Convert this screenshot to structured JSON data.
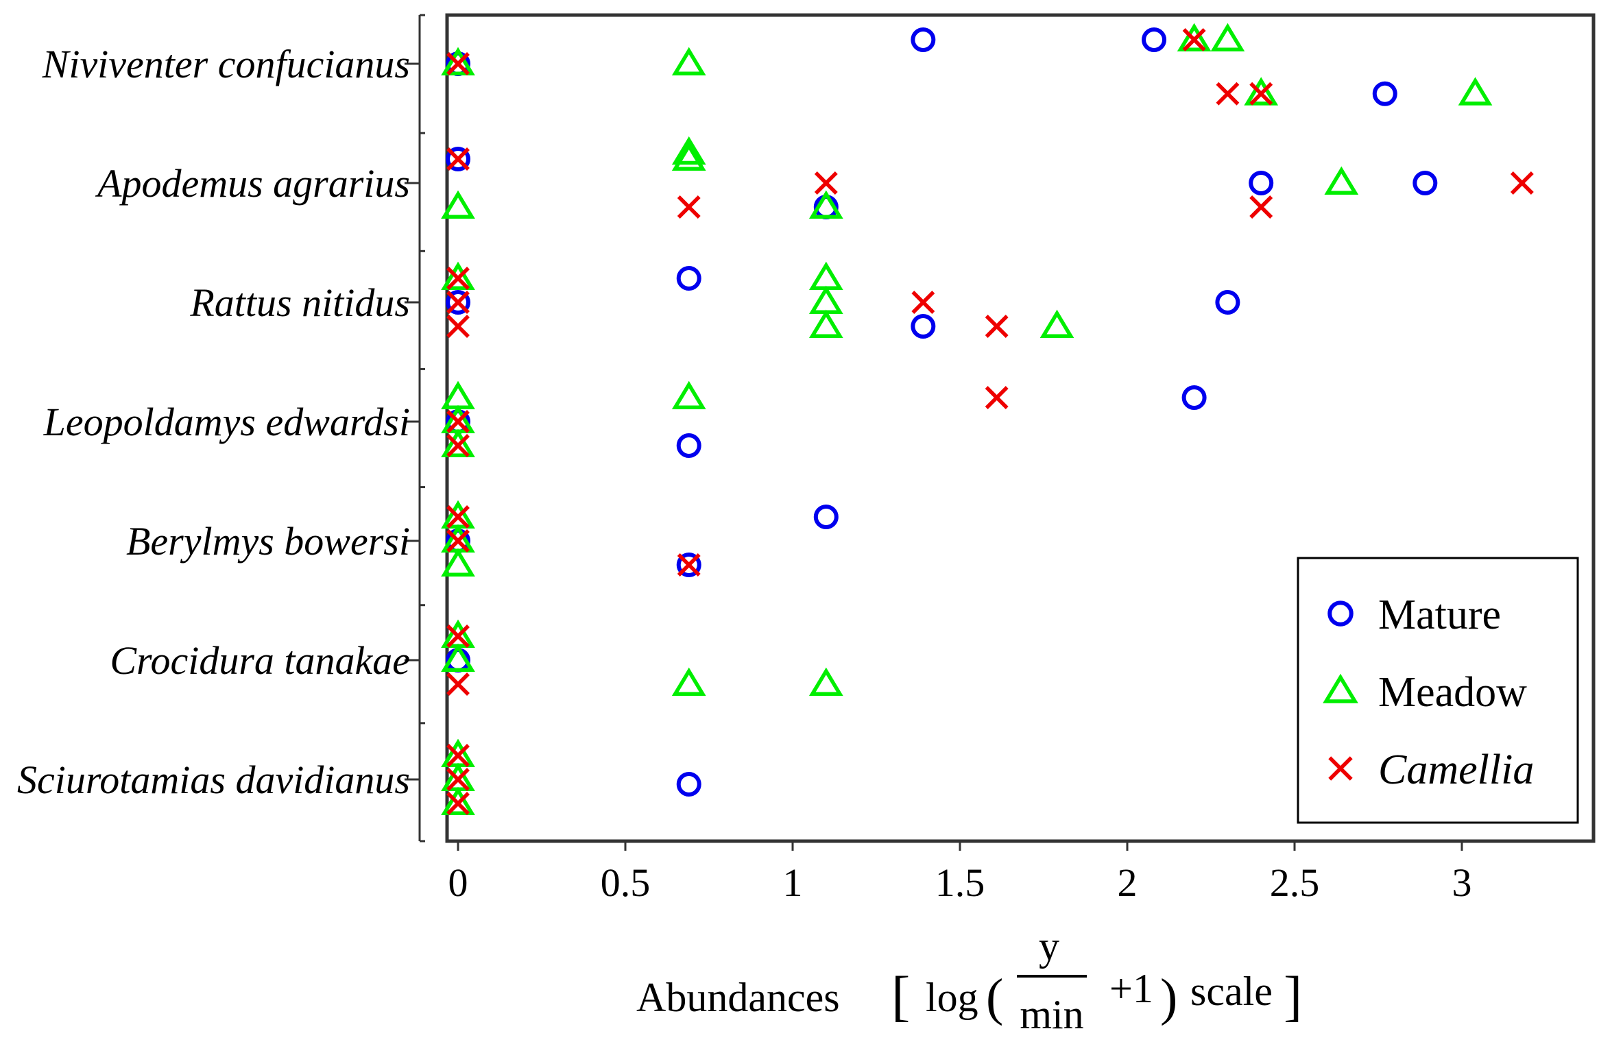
{
  "chart_data": {
    "type": "scatter",
    "title": "",
    "xlabel": {
      "prefix": "Abundances",
      "log": "log",
      "numerator": "y",
      "denominator": "min",
      "plus_one": "+1",
      "scale": "scale",
      "open_bracket": "[",
      "close_bracket": "]",
      "open_paren": "(",
      "close_paren": ")"
    },
    "ylabel": "",
    "xlim": [
      -0.04,
      3.45
    ],
    "x_ticks": [
      0,
      0.5,
      1,
      1.5,
      2,
      2.5,
      3
    ],
    "x_tick_labels": [
      "0",
      "0.5",
      "1",
      "1.5",
      "2",
      "2.5",
      "3"
    ],
    "categories": [
      "Niviventer confucianus",
      "Apodemus agrarius",
      "Rattus nitidus",
      "Leopoldamys edwardsi",
      "Berylmys bowersi",
      "Crocidura tanakae",
      "Sciurotamias davidianus"
    ],
    "legend_position": "bottom-right",
    "colors": {
      "Mature": "#0000ee",
      "Meadow": "#00ee00",
      "Camellia": "#ee0000",
      "frame": "#333333"
    },
    "series": [
      {
        "name": "Mature",
        "marker": "circle",
        "italic": false,
        "points": [
          {
            "category": "Niviventer confucianus",
            "x": 0,
            "offset": 0
          },
          {
            "category": "Niviventer confucianus",
            "x": 1.39,
            "offset": 0.2
          },
          {
            "category": "Niviventer confucianus",
            "x": 2.08,
            "offset": 0.2
          },
          {
            "category": "Niviventer confucianus",
            "x": 2.77,
            "offset": -0.25
          },
          {
            "category": "Apodemus agrarius",
            "x": 0,
            "offset": 0.2
          },
          {
            "category": "Apodemus agrarius",
            "x": 1.1,
            "offset": -0.2
          },
          {
            "category": "Apodemus agrarius",
            "x": 2.4,
            "offset": 0
          },
          {
            "category": "Apodemus agrarius",
            "x": 2.89,
            "offset": 0
          },
          {
            "category": "Rattus nitidus",
            "x": 0,
            "offset": 0
          },
          {
            "category": "Rattus nitidus",
            "x": 0.69,
            "offset": 0.2
          },
          {
            "category": "Rattus nitidus",
            "x": 2.3,
            "offset": 0
          },
          {
            "category": "Rattus nitidus",
            "x": 1.39,
            "offset": -0.2
          },
          {
            "category": "Leopoldamys edwardsi",
            "x": 0,
            "offset": 0
          },
          {
            "category": "Leopoldamys edwardsi",
            "x": 2.2,
            "offset": 0.2
          },
          {
            "category": "Leopoldamys edwardsi",
            "x": 0.69,
            "offset": -0.2
          },
          {
            "category": "Berylmys bowersi",
            "x": 0,
            "offset": 0
          },
          {
            "category": "Berylmys bowersi",
            "x": 1.1,
            "offset": 0.2
          },
          {
            "category": "Berylmys bowersi",
            "x": 0.69,
            "offset": -0.2
          },
          {
            "category": "Crocidura tanakae",
            "x": 0,
            "offset": 0
          },
          {
            "category": "Sciurotamias davidianus",
            "x": 0.69,
            "offset": -0.04
          }
        ]
      },
      {
        "name": "Meadow",
        "marker": "triangle",
        "italic": false,
        "points": [
          {
            "category": "Niviventer confucianus",
            "x": 0,
            "offset": 0
          },
          {
            "category": "Niviventer confucianus",
            "x": 0.69,
            "offset": 0
          },
          {
            "category": "Niviventer confucianus",
            "x": 2.2,
            "offset": 0.2
          },
          {
            "category": "Niviventer confucianus",
            "x": 2.3,
            "offset": 0.2
          },
          {
            "category": "Niviventer confucianus",
            "x": 2.4,
            "offset": -0.25
          },
          {
            "category": "Niviventer confucianus",
            "x": 3.04,
            "offset": -0.25
          },
          {
            "category": "Apodemus agrarius",
            "x": 0.69,
            "offset": 0.25
          },
          {
            "category": "Apodemus agrarius",
            "x": 0.69,
            "offset": 0.2
          },
          {
            "category": "Apodemus agrarius",
            "x": 0,
            "offset": -0.2
          },
          {
            "category": "Apodemus agrarius",
            "x": 1.1,
            "offset": -0.2
          },
          {
            "category": "Apodemus agrarius",
            "x": 2.64,
            "offset": 0
          },
          {
            "category": "Rattus nitidus",
            "x": 0,
            "offset": 0.2
          },
          {
            "category": "Rattus nitidus",
            "x": 1.1,
            "offset": 0.2
          },
          {
            "category": "Rattus nitidus",
            "x": 1.1,
            "offset": 0
          },
          {
            "category": "Rattus nitidus",
            "x": 1.1,
            "offset": -0.2
          },
          {
            "category": "Rattus nitidus",
            "x": 1.79,
            "offset": -0.2
          },
          {
            "category": "Leopoldamys edwardsi",
            "x": 0,
            "offset": 0.2
          },
          {
            "category": "Leopoldamys edwardsi",
            "x": 0.69,
            "offset": 0.2
          },
          {
            "category": "Leopoldamys edwardsi",
            "x": 0,
            "offset": 0
          },
          {
            "category": "Leopoldamys edwardsi",
            "x": 0,
            "offset": -0.2
          },
          {
            "category": "Berylmys bowersi",
            "x": 0,
            "offset": 0.2
          },
          {
            "category": "Berylmys bowersi",
            "x": 0,
            "offset": 0
          },
          {
            "category": "Berylmys bowersi",
            "x": 0,
            "offset": -0.2
          },
          {
            "category": "Crocidura tanakae",
            "x": 0,
            "offset": 0.2
          },
          {
            "category": "Crocidura tanakae",
            "x": 0,
            "offset": 0
          },
          {
            "category": "Crocidura tanakae",
            "x": 0.69,
            "offset": -0.2
          },
          {
            "category": "Crocidura tanakae",
            "x": 1.1,
            "offset": -0.2
          },
          {
            "category": "Sciurotamias davidianus",
            "x": 0,
            "offset": 0.2
          },
          {
            "category": "Sciurotamias davidianus",
            "x": 0,
            "offset": 0
          },
          {
            "category": "Sciurotamias davidianus",
            "x": 0,
            "offset": -0.2
          }
        ]
      },
      {
        "name": "Camellia",
        "marker": "x",
        "italic": true,
        "points": [
          {
            "category": "Niviventer confucianus",
            "x": 0,
            "offset": 0
          },
          {
            "category": "Niviventer confucianus",
            "x": 2.2,
            "offset": 0.2
          },
          {
            "category": "Niviventer confucianus",
            "x": 2.3,
            "offset": -0.25
          },
          {
            "category": "Niviventer confucianus",
            "x": 2.4,
            "offset": -0.25
          },
          {
            "category": "Apodemus agrarius",
            "x": 0,
            "offset": 0.2
          },
          {
            "category": "Apodemus agrarius",
            "x": 1.1,
            "offset": 0
          },
          {
            "category": "Apodemus agrarius",
            "x": 0.69,
            "offset": -0.2
          },
          {
            "category": "Apodemus agrarius",
            "x": 2.4,
            "offset": -0.2
          },
          {
            "category": "Apodemus agrarius",
            "x": 3.18,
            "offset": 0
          },
          {
            "category": "Rattus nitidus",
            "x": 0,
            "offset": 0.2
          },
          {
            "category": "Rattus nitidus",
            "x": 0,
            "offset": 0
          },
          {
            "category": "Rattus nitidus",
            "x": 0,
            "offset": -0.2
          },
          {
            "category": "Rattus nitidus",
            "x": 1.39,
            "offset": 0
          },
          {
            "category": "Rattus nitidus",
            "x": 1.61,
            "offset": -0.2
          },
          {
            "category": "Leopoldamys edwardsi",
            "x": 1.61,
            "offset": 0.2
          },
          {
            "category": "Leopoldamys edwardsi",
            "x": 0,
            "offset": 0
          },
          {
            "category": "Leopoldamys edwardsi",
            "x": 0,
            "offset": -0.2
          },
          {
            "category": "Berylmys bowersi",
            "x": 0,
            "offset": 0.2
          },
          {
            "category": "Berylmys bowersi",
            "x": 0,
            "offset": 0
          },
          {
            "category": "Berylmys bowersi",
            "x": 0.69,
            "offset": -0.2
          },
          {
            "category": "Crocidura tanakae",
            "x": 0,
            "offset": 0.2
          },
          {
            "category": "Crocidura tanakae",
            "x": 0,
            "offset": -0.2
          },
          {
            "category": "Sciurotamias davidianus",
            "x": 0,
            "offset": 0.2
          },
          {
            "category": "Sciurotamias davidianus",
            "x": 0,
            "offset": 0
          },
          {
            "category": "Sciurotamias davidianus",
            "x": 0,
            "offset": -0.2
          }
        ]
      }
    ]
  }
}
